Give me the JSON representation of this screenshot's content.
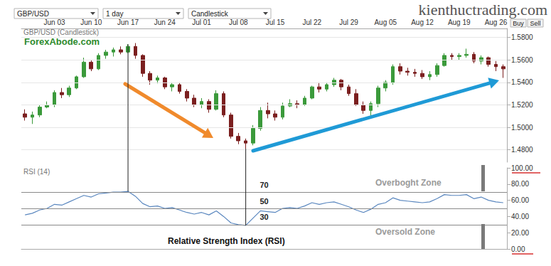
{
  "toolbar": {
    "instrument": "GBP/USD",
    "period": "1 day",
    "style": "Candlestick",
    "buttons": [
      "Buy",
      "Sell"
    ]
  },
  "watermark": "kienthuctrading.com",
  "chart_data": [
    {
      "type": "candlestick",
      "title": "GBP/USD (Candlestick)",
      "annotations": [
        "ForexAbode.com"
      ],
      "categories": [
        null,
        null,
        null,
        null,
        "Jun 03",
        null,
        null,
        null,
        null,
        "Jun 10",
        null,
        null,
        null,
        null,
        "Jun 17",
        null,
        null,
        null,
        null,
        "Jun 24",
        null,
        null,
        null,
        null,
        "Jul 01",
        null,
        null,
        null,
        null,
        "Jul 08",
        null,
        null,
        null,
        null,
        "Jul 15",
        null,
        null,
        null,
        null,
        "Jul 22",
        null,
        null,
        null,
        null,
        "Jul 29",
        null,
        null,
        null,
        null,
        "Aug 05",
        null,
        null,
        null,
        null,
        "Aug 12",
        null,
        null,
        null,
        null,
        "Aug 19",
        null,
        null,
        null,
        null,
        "Aug 26",
        null
      ],
      "open": [
        1.512,
        1.509,
        1.511,
        1.518,
        1.52,
        1.531,
        1.529,
        1.535,
        1.545,
        1.558,
        1.552,
        1.564,
        1.567,
        1.569,
        1.567,
        1.572,
        1.564,
        1.548,
        1.542,
        1.544,
        1.536,
        1.538,
        1.532,
        1.526,
        1.52,
        1.523,
        1.516,
        1.53,
        1.511,
        1.492,
        1.488,
        1.486,
        1.499,
        1.515,
        1.512,
        1.509,
        1.519,
        1.521,
        1.52,
        1.526,
        1.536,
        1.534,
        1.538,
        1.542,
        1.536,
        1.53,
        1.52,
        1.515,
        1.521,
        1.535,
        1.54,
        1.554,
        1.55,
        1.549,
        1.548,
        1.545,
        1.547,
        1.555,
        1.564,
        1.563,
        1.564,
        1.565,
        1.559,
        1.562,
        1.556,
        1.554
      ],
      "high": [
        1.516,
        1.514,
        1.52,
        1.523,
        1.533,
        1.535,
        1.537,
        1.546,
        1.562,
        1.56,
        1.566,
        1.569,
        1.571,
        1.572,
        1.574,
        1.575,
        1.565,
        1.55,
        1.546,
        1.545,
        1.54,
        1.54,
        1.534,
        1.529,
        1.526,
        1.525,
        1.533,
        1.532,
        1.513,
        1.495,
        1.49,
        1.502,
        1.518,
        1.522,
        1.515,
        1.522,
        1.525,
        1.524,
        1.528,
        1.537,
        1.54,
        1.54,
        1.544,
        1.543,
        1.538,
        1.534,
        1.523,
        1.523,
        1.537,
        1.542,
        1.556,
        1.557,
        1.553,
        1.552,
        1.551,
        1.55,
        1.557,
        1.566,
        1.566,
        1.566,
        1.57,
        1.567,
        1.564,
        1.563,
        1.559,
        1.556
      ],
      "low": [
        1.506,
        1.503,
        1.509,
        1.517,
        1.518,
        1.526,
        1.527,
        1.534,
        1.544,
        1.55,
        1.551,
        1.561,
        1.563,
        1.565,
        1.566,
        1.561,
        1.545,
        1.538,
        1.539,
        1.534,
        1.532,
        1.53,
        1.523,
        1.518,
        1.517,
        1.513,
        1.515,
        1.509,
        1.49,
        1.485,
        1.481,
        1.484,
        1.497,
        1.508,
        1.506,
        1.507,
        1.518,
        1.517,
        1.519,
        1.525,
        1.531,
        1.532,
        1.536,
        1.533,
        1.528,
        1.519,
        1.512,
        1.51,
        1.518,
        1.532,
        1.538,
        1.547,
        1.546,
        1.545,
        1.543,
        1.542,
        1.545,
        1.554,
        1.56,
        1.56,
        1.562,
        1.557,
        1.556,
        1.554,
        1.55,
        1.544
      ],
      "close": [
        1.509,
        1.511,
        1.518,
        1.52,
        1.531,
        1.529,
        1.535,
        1.545,
        1.558,
        1.552,
        1.564,
        1.567,
        1.569,
        1.567,
        1.572,
        1.564,
        1.548,
        1.542,
        1.544,
        1.536,
        1.538,
        1.532,
        1.526,
        1.52,
        1.523,
        1.516,
        1.53,
        1.511,
        1.492,
        1.488,
        1.486,
        1.499,
        1.515,
        1.512,
        1.509,
        1.519,
        1.521,
        1.52,
        1.526,
        1.536,
        1.534,
        1.538,
        1.542,
        1.536,
        1.53,
        1.52,
        1.515,
        1.521,
        1.535,
        1.54,
        1.554,
        1.55,
        1.549,
        1.548,
        1.545,
        1.547,
        1.555,
        1.564,
        1.563,
        1.564,
        1.565,
        1.559,
        1.562,
        1.556,
        1.554,
        1.552
      ],
      "color": [
        "#3b9a3b",
        "#7b1f1f"
      ],
      "ylim": [
        1.469,
        1.588
      ],
      "yticks": [
        {
          "value": 1.48,
          "label": "1.4800"
        },
        {
          "value": 1.5,
          "label": "1.5000"
        },
        {
          "value": 1.52,
          "label": "1.5200"
        },
        {
          "value": 1.54,
          "label": "1.5400"
        },
        {
          "value": 1.56,
          "label": "1.5600"
        },
        {
          "value": 1.58,
          "label": "1.5800"
        }
      ],
      "grid": true
    },
    {
      "type": "line",
      "title": "RSI (14)",
      "annotations": [
        "Overboght Zone",
        "Oversold Zone",
        "Relative Strength Index (RSI)"
      ],
      "values": [
        42,
        44,
        48,
        50,
        55,
        54,
        58,
        62,
        66,
        64,
        68,
        69,
        70,
        70,
        71,
        65,
        56,
        52,
        53,
        50,
        51,
        48,
        45,
        43,
        45,
        42,
        47,
        40,
        32,
        30,
        29,
        38,
        47,
        46,
        45,
        50,
        51,
        50,
        53,
        57,
        55,
        57,
        58,
        55,
        52,
        48,
        45,
        49,
        55,
        57,
        63,
        60,
        59,
        58,
        57,
        58,
        62,
        67,
        66,
        66,
        67,
        62,
        64,
        60,
        58,
        57
      ],
      "levels": [
        70,
        50,
        30
      ],
      "color": "#5a87bf",
      "ylim": [
        0,
        100
      ],
      "yticks": [
        {
          "value": 0,
          "label": "0.00"
        },
        {
          "value": 20,
          "label": "20.00"
        },
        {
          "value": 40,
          "label": "40.00"
        },
        {
          "value": 60,
          "label": "60.00"
        },
        {
          "value": 80,
          "label": "80.00"
        },
        {
          "value": 100,
          "label": "100.00"
        }
      ],
      "grid": false
    }
  ]
}
